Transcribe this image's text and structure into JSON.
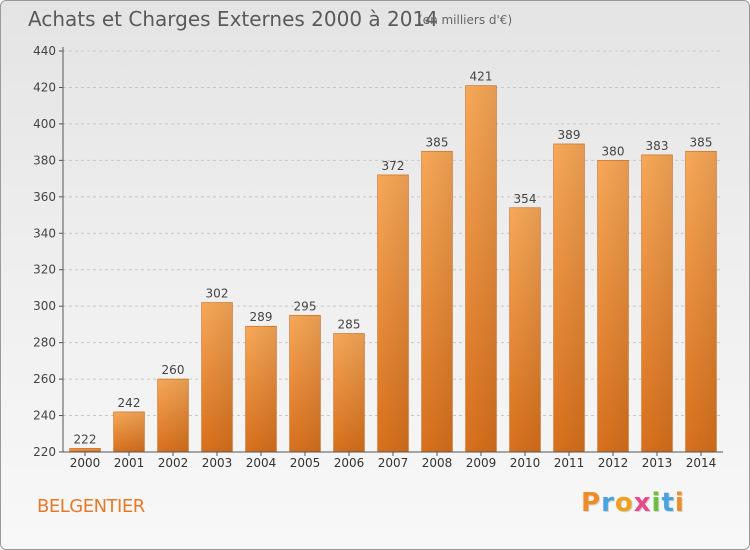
{
  "chart_data": {
    "type": "bar",
    "title": "Achats et Charges Externes 2000 à 2014",
    "unit": "(en milliers d'€)",
    "categories": [
      "2000",
      "2001",
      "2002",
      "2003",
      "2004",
      "2005",
      "2006",
      "2007",
      "2008",
      "2009",
      "2010",
      "2011",
      "2012",
      "2013",
      "2014"
    ],
    "values": [
      222,
      242,
      260,
      302,
      289,
      295,
      285,
      372,
      385,
      421,
      354,
      389,
      380,
      383,
      385
    ],
    "ylim": [
      220,
      440
    ],
    "yticks": [
      220,
      240,
      260,
      280,
      300,
      320,
      340,
      360,
      380,
      400,
      420,
      440
    ],
    "grid": true,
    "bar_color": "#f0943a"
  },
  "commune": "BELGENTIER",
  "logo": {
    "letters": [
      "P",
      "r",
      "o",
      "x",
      "i",
      "t",
      "i"
    ],
    "colors": [
      "#f08c28",
      "#4aa3df",
      "#f0a020",
      "#e84a8a",
      "#6cbf3a",
      "#4aa3df",
      "#f08c28"
    ]
  }
}
